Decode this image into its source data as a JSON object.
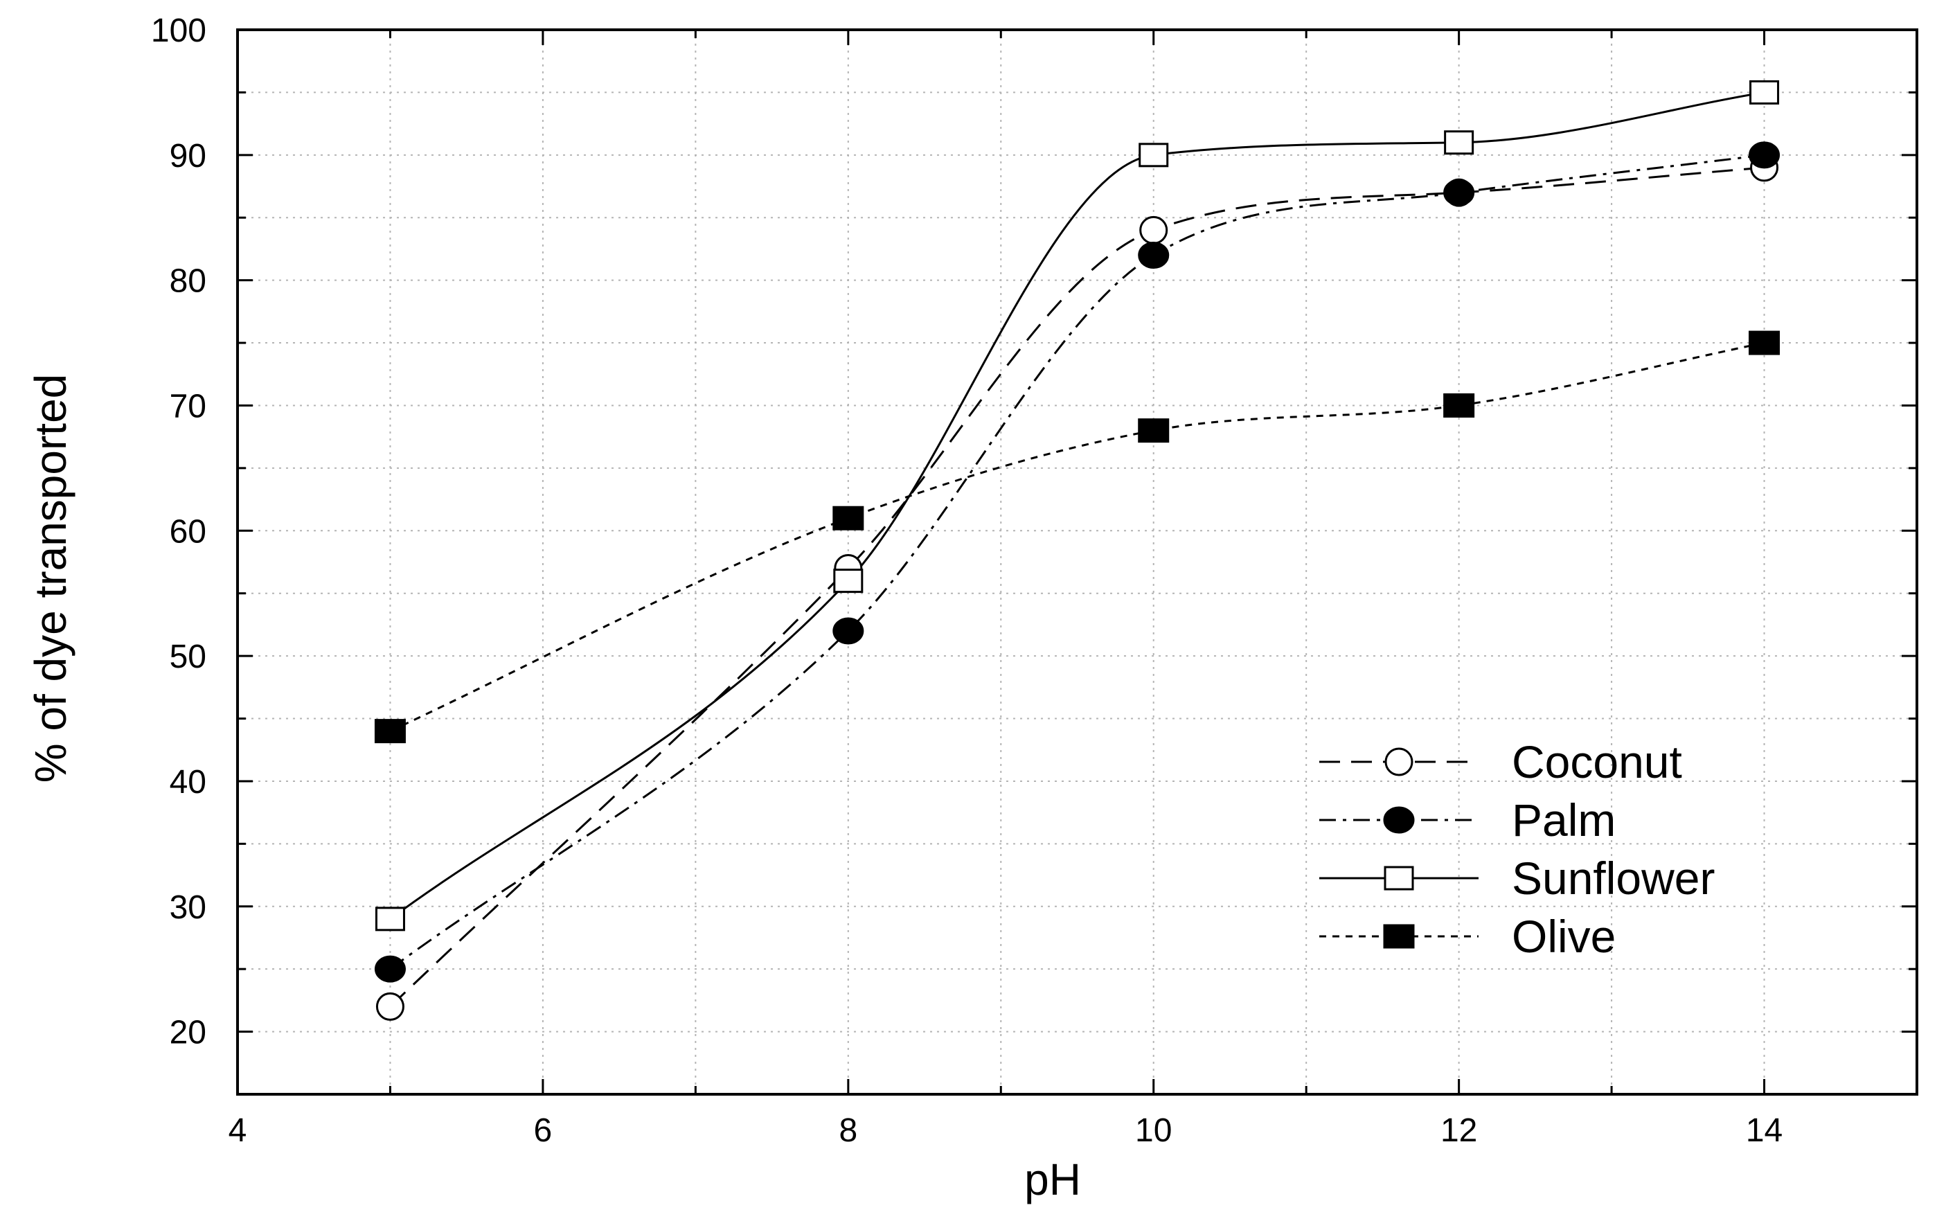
{
  "chart_data": {
    "type": "line",
    "xlabel": "pH",
    "ylabel": "% of dye transported",
    "xlim": [
      4,
      15
    ],
    "ylim": [
      15,
      100
    ],
    "xticks": [
      4,
      6,
      8,
      10,
      12,
      14
    ],
    "yticks": [
      20,
      30,
      40,
      50,
      60,
      70,
      80,
      90,
      100
    ],
    "grid": true,
    "legend_position": "lower-right",
    "series": [
      {
        "name": "Coconut",
        "marker": "open-circle",
        "line": "dashed",
        "points": [
          [
            5,
            22
          ],
          [
            8,
            57
          ],
          [
            10,
            84
          ],
          [
            12,
            87
          ],
          [
            14,
            89
          ]
        ]
      },
      {
        "name": "Palm",
        "marker": "filled-circle",
        "line": "dash-dot",
        "points": [
          [
            5,
            25
          ],
          [
            8,
            52
          ],
          [
            10,
            82
          ],
          [
            12,
            87
          ],
          [
            14,
            90
          ]
        ]
      },
      {
        "name": "Sunflower",
        "marker": "open-square",
        "line": "solid",
        "points": [
          [
            5,
            29
          ],
          [
            8,
            56
          ],
          [
            10,
            90
          ],
          [
            12,
            91
          ],
          [
            14,
            95
          ]
        ]
      },
      {
        "name": "Olive",
        "marker": "filled-square",
        "line": "short-dash",
        "points": [
          [
            5,
            44
          ],
          [
            8,
            61
          ],
          [
            10,
            68
          ],
          [
            12,
            70
          ],
          [
            14,
            75
          ]
        ]
      }
    ]
  }
}
